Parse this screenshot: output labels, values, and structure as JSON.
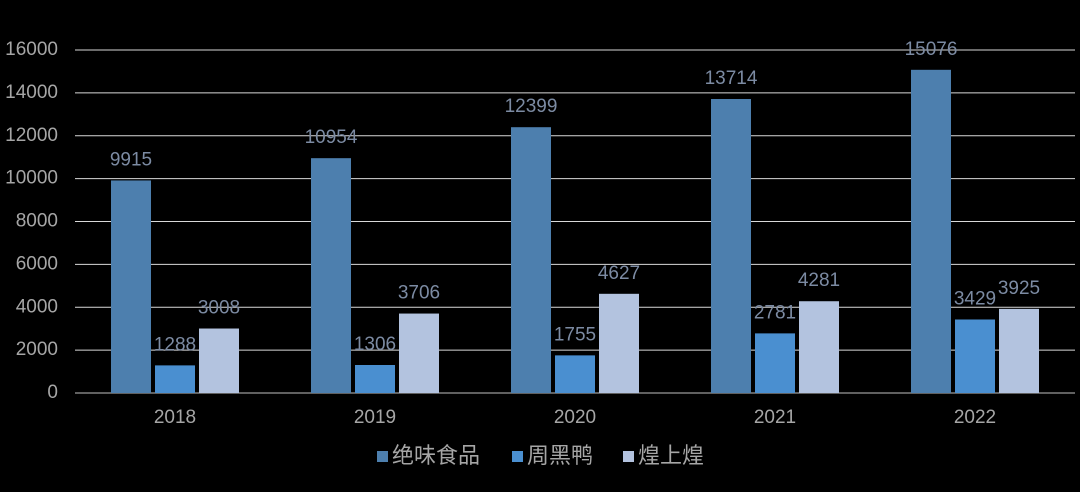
{
  "chart_data": {
    "type": "bar",
    "categories": [
      "2018",
      "2019",
      "2020",
      "2021",
      "2022"
    ],
    "series": [
      {
        "name": "绝味食品",
        "color": "#4d7fae",
        "values": [
          9915,
          10954,
          12399,
          13714,
          15076
        ]
      },
      {
        "name": "周黑鸭",
        "color": "#4a8fd0",
        "values": [
          1288,
          1306,
          1755,
          2781,
          3429
        ]
      },
      {
        "name": "煌上煌",
        "color": "#b3c3df",
        "values": [
          3008,
          3706,
          4627,
          4281,
          3925
        ]
      }
    ],
    "ylim": [
      0,
      16000
    ],
    "yticks": [
      0,
      2000,
      4000,
      6000,
      8000,
      10000,
      12000,
      14000,
      16000
    ],
    "grid": true,
    "legend": "bottom"
  }
}
